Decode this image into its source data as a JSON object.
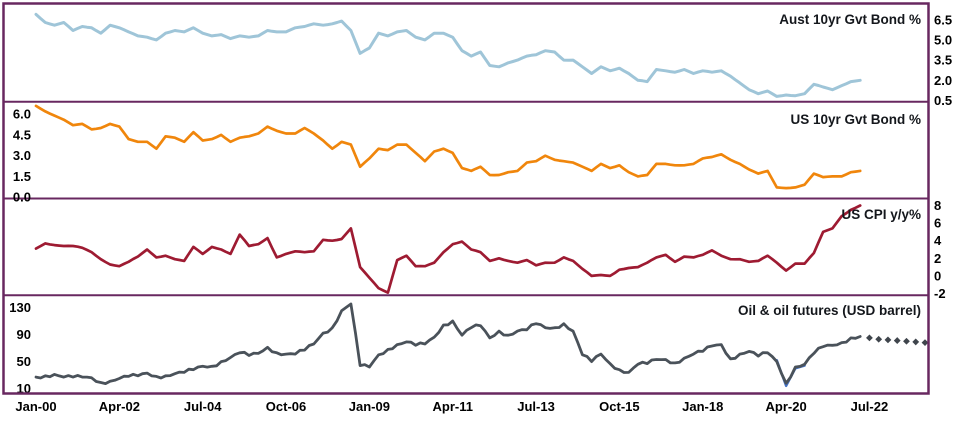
{
  "figure": {
    "background": "#ffffff",
    "border_color": "#682860",
    "text_color": "#000000"
  },
  "x_axis": {
    "month_range": [
      0,
      288
    ],
    "tick_months": [
      0,
      27,
      54,
      81,
      108,
      135,
      162,
      189,
      216,
      243,
      270
    ],
    "tick_labels": [
      "Jan-00",
      "Apr-02",
      "Jul-04",
      "Oct-06",
      "Jan-09",
      "Apr-11",
      "Jul-13",
      "Oct-15",
      "Jan-18",
      "Apr-20",
      "Jul-22"
    ]
  },
  "chart_data": {
    "type": "line",
    "title": "",
    "panels": [
      {
        "id": "aust-10yr-bond",
        "title": "Aust 10yr Gvt Bond %",
        "color": "#9fc5d8",
        "line_width": 3,
        "axis_side": "right",
        "ylim": [
          0.4,
          7.6
        ],
        "ticks": [
          {
            "label": "6.5",
            "v": 6.5
          },
          {
            "label": "5.0",
            "v": 5.0
          },
          {
            "label": "3.5",
            "v": 3.5
          },
          {
            "label": "2.0",
            "v": 2.0
          },
          {
            "label": "0.5",
            "v": 0.5
          }
        ],
        "start_month": 0,
        "step_months": 3,
        "values": [
          6.9,
          6.3,
          6.1,
          6.3,
          5.7,
          6.0,
          5.9,
          5.5,
          6.1,
          5.9,
          5.6,
          5.3,
          5.2,
          5.0,
          5.5,
          5.7,
          5.6,
          5.9,
          5.5,
          5.3,
          5.4,
          5.1,
          5.3,
          5.2,
          5.3,
          5.7,
          5.6,
          5.6,
          5.9,
          6.0,
          6.2,
          6.1,
          6.2,
          6.4,
          5.7,
          4.0,
          4.4,
          5.5,
          5.3,
          5.6,
          5.7,
          5.2,
          5.0,
          5.5,
          5.5,
          5.2,
          4.2,
          3.8,
          4.1,
          3.1,
          3.0,
          3.3,
          3.5,
          3.8,
          3.9,
          4.2,
          4.1,
          3.5,
          3.5,
          3.0,
          2.5,
          3.0,
          2.7,
          2.9,
          2.5,
          2.0,
          1.9,
          2.8,
          2.7,
          2.6,
          2.8,
          2.5,
          2.7,
          2.6,
          2.7,
          2.3,
          1.8,
          1.3,
          1.0,
          1.2,
          0.8,
          0.9,
          0.85,
          1.0,
          1.7,
          1.5,
          1.3,
          1.6,
          1.9,
          2.0
        ]
      },
      {
        "id": "us-10yr-bond",
        "title": "US 10yr Gvt Bond %",
        "color": "#f0860c",
        "line_width": 2.7,
        "axis_side": "left",
        "ylim": [
          -0.1,
          6.9
        ],
        "ticks": [
          {
            "label": "6.0",
            "v": 6.0
          },
          {
            "label": "4.5",
            "v": 4.5
          },
          {
            "label": "3.0",
            "v": 3.0
          },
          {
            "label": "1.5",
            "v": 1.5
          },
          {
            "label": "0.0",
            "v": 0.0
          }
        ],
        "start_month": 0,
        "step_months": 3,
        "values": [
          6.6,
          6.2,
          5.9,
          5.6,
          5.2,
          5.3,
          4.9,
          5.0,
          5.3,
          5.1,
          4.2,
          4.0,
          4.0,
          3.5,
          4.4,
          4.3,
          4.0,
          4.7,
          4.1,
          4.2,
          4.5,
          4.0,
          4.3,
          4.4,
          4.6,
          5.1,
          4.8,
          4.6,
          4.6,
          5.0,
          4.6,
          4.1,
          3.5,
          4.0,
          3.8,
          2.2,
          2.8,
          3.5,
          3.4,
          3.8,
          3.8,
          3.2,
          2.6,
          3.3,
          3.5,
          3.2,
          2.1,
          1.9,
          2.2,
          1.6,
          1.6,
          1.8,
          1.9,
          2.5,
          2.6,
          3.0,
          2.7,
          2.6,
          2.5,
          2.2,
          1.9,
          2.4,
          2.1,
          2.3,
          1.8,
          1.5,
          1.6,
          2.4,
          2.4,
          2.3,
          2.3,
          2.4,
          2.8,
          2.9,
          3.1,
          2.7,
          2.4,
          2.0,
          1.7,
          1.9,
          0.7,
          0.65,
          0.7,
          0.9,
          1.7,
          1.45,
          1.5,
          1.5,
          1.8,
          1.9
        ]
      },
      {
        "id": "us-cpi",
        "title": "US CPI y/y%",
        "color": "#9e1b32",
        "line_width": 2.7,
        "axis_side": "right",
        "ylim": [
          -2.2,
          8.8
        ],
        "ticks": [
          {
            "label": "8",
            "v": 8
          },
          {
            "label": "6",
            "v": 6
          },
          {
            "label": "4",
            "v": 4
          },
          {
            "label": "2",
            "v": 2
          },
          {
            "label": "0",
            "v": 0
          },
          {
            "label": "-2",
            "v": -2
          }
        ],
        "start_month": 0,
        "step_months": 3,
        "values": [
          3.1,
          3.7,
          3.5,
          3.4,
          3.4,
          3.2,
          2.7,
          1.9,
          1.3,
          1.1,
          1.6,
          2.2,
          3.0,
          2.1,
          2.3,
          1.9,
          1.7,
          3.3,
          2.5,
          3.3,
          3.0,
          2.5,
          4.7,
          3.4,
          3.6,
          4.3,
          2.1,
          2.5,
          2.8,
          2.7,
          2.8,
          4.1,
          4.0,
          4.2,
          5.4,
          1.0,
          -0.2,
          -1.4,
          -1.9,
          1.8,
          2.3,
          1.1,
          1.1,
          1.5,
          2.7,
          3.6,
          3.9,
          3.0,
          2.7,
          1.7,
          2.0,
          1.7,
          1.5,
          1.8,
          1.2,
          1.5,
          1.5,
          2.1,
          1.7,
          0.8,
          0.0,
          0.1,
          0.0,
          0.7,
          0.9,
          1.0,
          1.5,
          2.1,
          2.4,
          1.6,
          2.2,
          2.1,
          2.4,
          2.9,
          2.3,
          1.9,
          1.9,
          1.6,
          1.7,
          2.3,
          1.5,
          0.6,
          1.4,
          1.4,
          2.6,
          5.0,
          5.4,
          6.8,
          7.5,
          8.0
        ]
      },
      {
        "id": "oil",
        "title": "Oil & oil futures (USD barrel)",
        "color": "#4a525a",
        "line_width": 2.8,
        "axis_side": "left",
        "ylim": [
          5,
          148
        ],
        "ticks": [
          {
            "label": "130",
            "v": 130
          },
          {
            "label": "90",
            "v": 90
          },
          {
            "label": "50",
            "v": 50
          },
          {
            "label": "10",
            "v": 10
          }
        ],
        "start_month": 0,
        "step_months": 3,
        "values": [
          27,
          29,
          31,
          27,
          27,
          27,
          26,
          19,
          21,
          25,
          28,
          29,
          33,
          28,
          29,
          32,
          34,
          38,
          43,
          43,
          50,
          56,
          63,
          59,
          62,
          71,
          63,
          61,
          61,
          67,
          76,
          92,
          100,
          125,
          135,
          44,
          42,
          60,
          68,
          75,
          79,
          74,
          76,
          86,
          104,
          110,
          89,
          100,
          103,
          85,
          95,
          89,
          95,
          97,
          106,
          100,
          100,
          106,
          95,
          60,
          50,
          61,
          47,
          38,
          34,
          46,
          47,
          53,
          53,
          48,
          55,
          61,
          65,
          73,
          75,
          54,
          61,
          65,
          58,
          63,
          50,
          18,
          42,
          46,
          62,
          72,
          74,
          78,
          85,
          87
        ],
        "overlay": {
          "name": "prior-futures-segment",
          "color": "#4472C4",
          "line_width": 2.4,
          "start_month": 240,
          "step_months": 3,
          "values": [
            52,
            14,
            40,
            44
          ]
        },
        "futures": {
          "name": "oil-futures-diamonds",
          "color": "#3f454c",
          "start_month": 270,
          "step_months": 3,
          "values": [
            85,
            83,
            82,
            81,
            80,
            79,
            78
          ]
        }
      }
    ]
  }
}
